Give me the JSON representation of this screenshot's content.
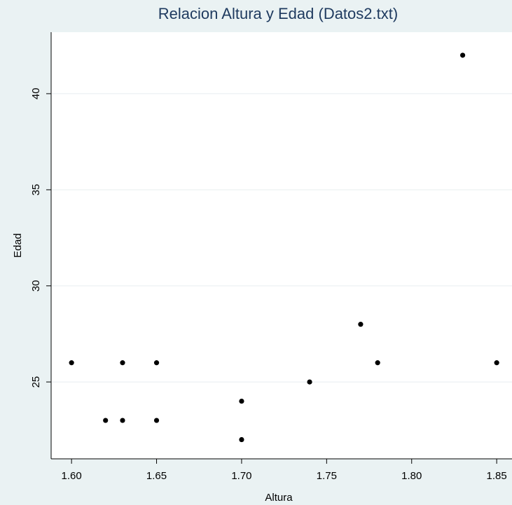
{
  "chart_data": {
    "type": "scatter",
    "title": "Relacion Altura y Edad (Datos2.txt)",
    "xlabel": "Altura",
    "ylabel": "Edad",
    "xlim": [
      1.588,
      1.859
    ],
    "ylim": [
      21.0,
      43.2
    ],
    "xticks": [
      1.6,
      1.65,
      1.7,
      1.75,
      1.8,
      1.85
    ],
    "xtick_labels": [
      "1.60",
      "1.65",
      "1.70",
      "1.75",
      "1.80",
      "1.85"
    ],
    "yticks": [
      25,
      30,
      35,
      40
    ],
    "ytick_labels": [
      "25",
      "30",
      "35",
      "40"
    ],
    "grid": "horizontal",
    "colors": {
      "background": "#eaf2f3",
      "plot_area": "#ffffff",
      "title": "#1e3a5f",
      "grid": "#e8eef0",
      "marker": "#000000"
    },
    "points": [
      {
        "x": 1.6,
        "y": 26
      },
      {
        "x": 1.62,
        "y": 23
      },
      {
        "x": 1.63,
        "y": 26
      },
      {
        "x": 1.63,
        "y": 23
      },
      {
        "x": 1.65,
        "y": 26
      },
      {
        "x": 1.65,
        "y": 23
      },
      {
        "x": 1.7,
        "y": 24
      },
      {
        "x": 1.7,
        "y": 22
      },
      {
        "x": 1.74,
        "y": 25
      },
      {
        "x": 1.77,
        "y": 28
      },
      {
        "x": 1.78,
        "y": 26
      },
      {
        "x": 1.83,
        "y": 42
      },
      {
        "x": 1.85,
        "y": 26
      }
    ]
  }
}
